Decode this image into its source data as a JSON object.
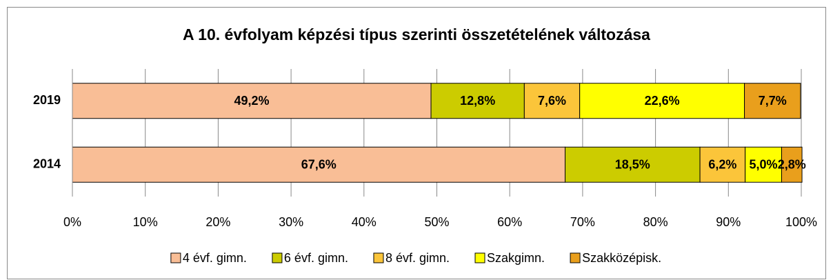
{
  "chart_data": {
    "type": "stacked-bar-horizontal",
    "title": "A 10. évfolyam képzési típus szerinti összetételének változása",
    "categories": [
      "2019",
      "2014"
    ],
    "series": [
      {
        "name": "4 évf. gimn.",
        "color": "#f9be96",
        "values": [
          49.2,
          67.6
        ],
        "value_labels": [
          "49,2%",
          "67,6%"
        ]
      },
      {
        "name": "6 évf. gimn.",
        "color": "#cccc00",
        "values": [
          12.8,
          18.5
        ],
        "value_labels": [
          "12,8%",
          "18,5%"
        ]
      },
      {
        "name": "8 évf. gimn.",
        "color": "#fbc53a",
        "values": [
          7.6,
          6.2
        ],
        "value_labels": [
          "7,6%",
          "6,2%"
        ]
      },
      {
        "name": "Szakgimn.",
        "color": "#ffff00",
        "values": [
          22.6,
          5.0
        ],
        "value_labels": [
          "22,6%",
          "5,0%"
        ]
      },
      {
        "name": "Szakközépisk.",
        "color": "#e99f1c",
        "values": [
          7.7,
          2.8
        ],
        "value_labels": [
          "7,7%",
          "2,8%"
        ]
      }
    ],
    "xlim": [
      0,
      100
    ],
    "xticks": [
      {
        "value": 0,
        "label": "0%"
      },
      {
        "value": 10,
        "label": "10%"
      },
      {
        "value": 20,
        "label": "20%"
      },
      {
        "value": 30,
        "label": "30%"
      },
      {
        "value": 40,
        "label": "40%"
      },
      {
        "value": 50,
        "label": "50%"
      },
      {
        "value": 60,
        "label": "60%"
      },
      {
        "value": 70,
        "label": "70%"
      },
      {
        "value": 80,
        "label": "80%"
      },
      {
        "value": 90,
        "label": "90%"
      },
      {
        "value": 100,
        "label": "100%"
      }
    ],
    "grid": true,
    "legend": "bottom"
  }
}
